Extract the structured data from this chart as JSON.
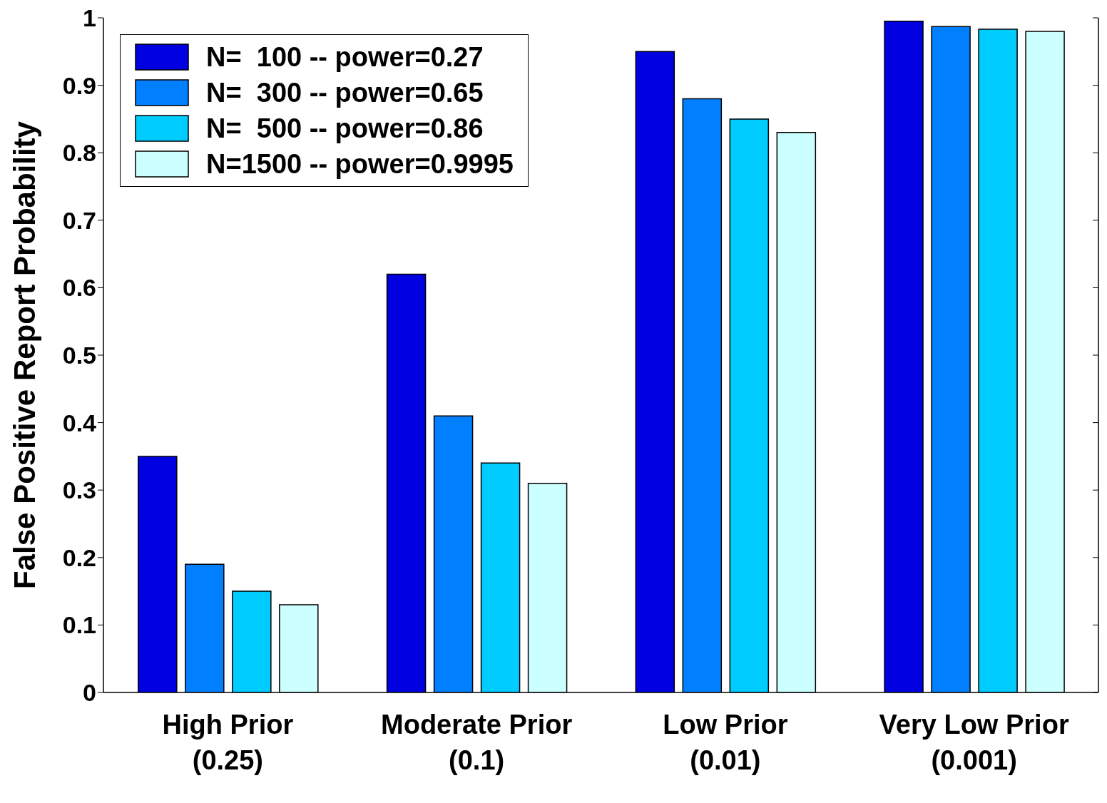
{
  "chart_data": {
    "type": "bar",
    "ylabel": "False Positive Report Probability",
    "categories": [
      "High Prior\n(0.25)",
      "Moderate Prior\n(0.1)",
      "Low Prior\n(0.01)",
      "Very Low Prior\n(0.001)"
    ],
    "series": [
      {
        "name": "N=  100 -- power=0.27",
        "color": "#0000e0",
        "values": [
          0.35,
          0.62,
          0.95,
          0.995
        ]
      },
      {
        "name": "N=  300 -- power=0.65",
        "color": "#0080ff",
        "values": [
          0.19,
          0.41,
          0.88,
          0.987
        ]
      },
      {
        "name": "N=  500 -- power=0.86",
        "color": "#00ccff",
        "values": [
          0.15,
          0.34,
          0.85,
          0.983
        ]
      },
      {
        "name": "N=1500 -- power=0.9995",
        "color": "#ccffff",
        "values": [
          0.13,
          0.31,
          0.83,
          0.98
        ]
      }
    ],
    "ylim": [
      0,
      1
    ],
    "yticks": [
      0,
      0.1,
      0.2,
      0.3,
      0.4,
      0.5,
      0.6,
      0.7,
      0.8,
      0.9,
      1
    ],
    "grid": false,
    "legend": "top left"
  }
}
